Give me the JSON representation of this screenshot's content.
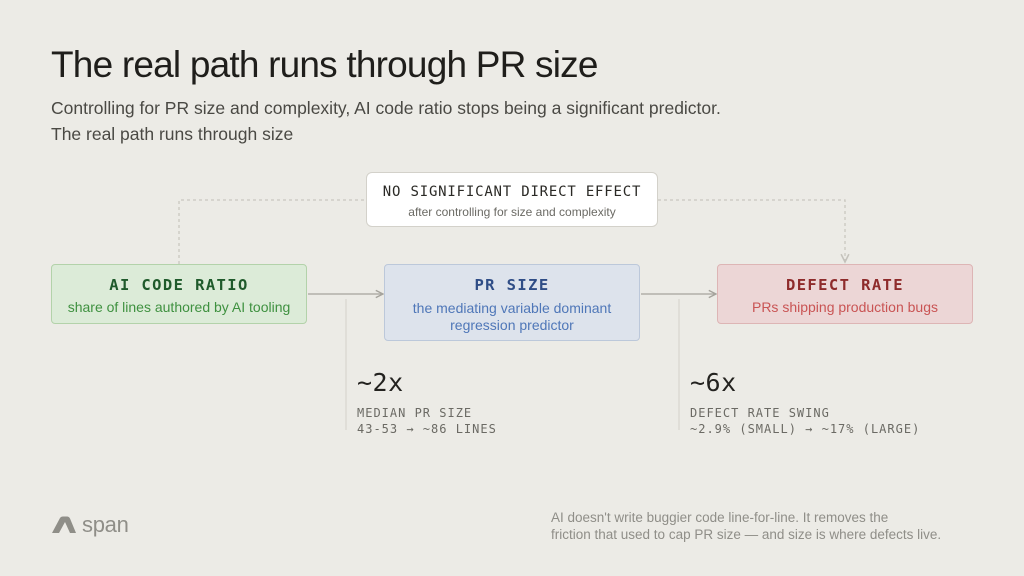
{
  "header": {
    "title": "The real path runs through PR size",
    "subtitle_line1": "Controlling for PR size and complexity, AI code ratio stops being a significant predictor.",
    "subtitle_line2": "The real path runs through size"
  },
  "diagram": {
    "direct_effect": {
      "title": "NO SIGNIFICANT DIRECT EFFECT",
      "subtitle": "after controlling for size and complexity"
    },
    "nodes": [
      {
        "id": "ai-code-ratio",
        "title": "AI CODE RATIO",
        "subtitle": "share of lines authored by AI tooling",
        "color": "#dcebd8"
      },
      {
        "id": "pr-size",
        "title": "PR SIZE",
        "subtitle": "the mediating variable dominant regression predictor",
        "color": "#dde3ec"
      },
      {
        "id": "defect-rate",
        "title": "DEFECT RATE",
        "subtitle": "PRs shipping production bugs",
        "color": "#ecd6d6"
      }
    ]
  },
  "stats": [
    {
      "value": "~2x",
      "label_line1": "MEDIAN PR SIZE",
      "label_line2": "43-53 → ~86 LINES"
    },
    {
      "value": "~6x",
      "label_line1": "DEFECT RATE SWING",
      "label_line2": "~2.9% (SMALL) → ~17% (LARGE)"
    }
  ],
  "brand": {
    "name": "span",
    "icon": "span-logo-icon"
  },
  "footer": {
    "line1": "AI doesn't write buggier code line-for-line. It removes the",
    "line2": "friction that used to cap PR size — and size is where defects live."
  }
}
